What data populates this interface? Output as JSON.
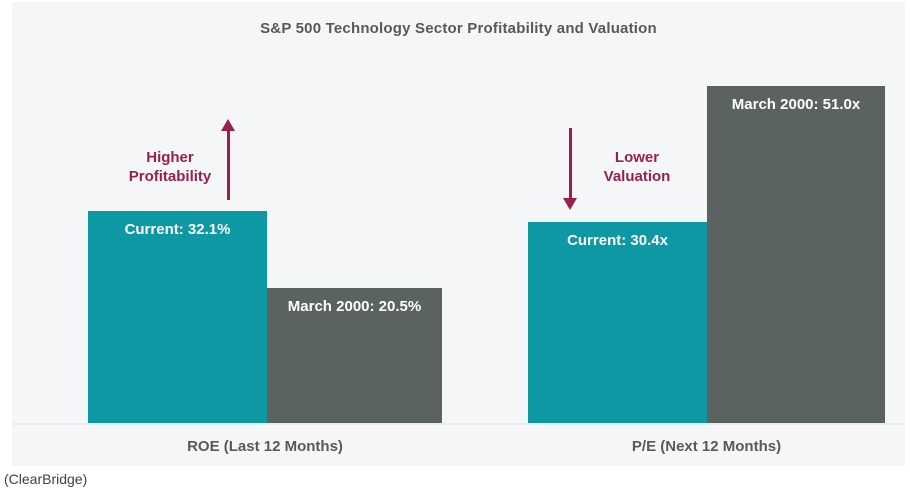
{
  "title": "S&P 500 Technology Sector Profitability and Valuation",
  "attribution": "(ClearBridge)",
  "colors": {
    "chart_background": "#f4f6f8",
    "current_bar": "#0d98a3",
    "march_2000_bar": "#5a6361",
    "annotation_accent": "#98204a",
    "heading_text": "#58595b",
    "bar_label_text": "#ffffff"
  },
  "chart_data": {
    "type": "bar",
    "title": "S&P 500 Technology Sector Profitability and Valuation",
    "ylim": [
      0,
      55
    ],
    "grid": false,
    "legend": "none",
    "source": "(ClearBridge)",
    "groups": [
      {
        "label": "ROE (Last 12 Months)",
        "annotation": {
          "text": "Higher\nProfitability",
          "arrow": "up"
        },
        "bars": [
          {
            "series": "Current",
            "value": 32.1,
            "unit": "%",
            "label": "Current: 32.1%",
            "color_key": "current_bar"
          },
          {
            "series": "March 2000",
            "value": 20.5,
            "unit": "%",
            "label": "March 2000: 20.5%",
            "color_key": "march_2000_bar"
          }
        ]
      },
      {
        "label": "P/E (Next 12 Months)",
        "annotation": {
          "text": "Lower\nValuation",
          "arrow": "down"
        },
        "bars": [
          {
            "series": "Current",
            "value": 30.4,
            "unit": "x",
            "label": "Current: 30.4x",
            "color_key": "current_bar"
          },
          {
            "series": "March 2000",
            "value": 51.0,
            "unit": "x",
            "label": "March 2000: 51.0x",
            "color_key": "march_2000_bar"
          }
        ]
      }
    ]
  }
}
